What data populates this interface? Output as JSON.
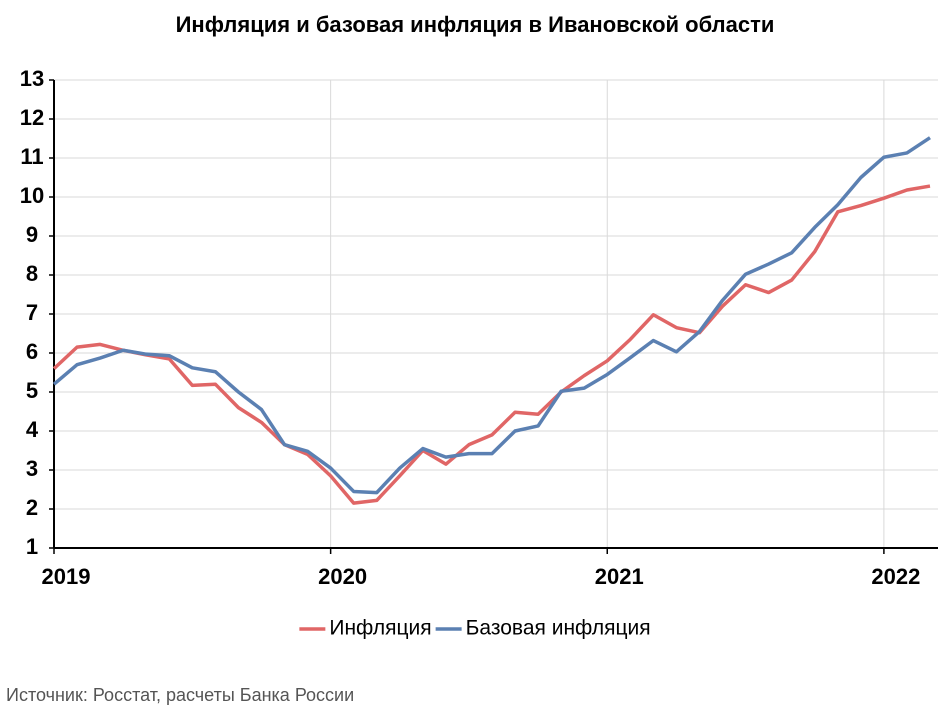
{
  "chart_data": {
    "type": "line",
    "title": "Инфляция и базовая инфляция в Ивановской области",
    "source": "Источник: Росстат, расчеты Банка России",
    "categories": [
      "2019",
      null,
      null,
      null,
      null,
      null,
      null,
      null,
      null,
      null,
      null,
      null,
      "2020",
      null,
      null,
      null,
      null,
      null,
      null,
      null,
      null,
      null,
      null,
      null,
      "2021",
      null,
      null,
      null,
      null,
      null,
      null,
      null,
      null,
      null,
      null,
      null,
      "2022",
      null,
      null
    ],
    "series": [
      {
        "name": "Инфляция",
        "color": "#e06666",
        "values": [
          5.6,
          6.15,
          6.22,
          6.07,
          5.95,
          5.85,
          5.17,
          5.2,
          4.6,
          4.22,
          3.65,
          3.4,
          2.85,
          2.15,
          2.22,
          2.85,
          3.5,
          3.15,
          3.65,
          3.9,
          4.48,
          4.43,
          5.0,
          5.42,
          5.8,
          6.35,
          6.98,
          6.65,
          6.52,
          7.2,
          7.75,
          7.55,
          7.87,
          8.6,
          9.62,
          9.78,
          9.97,
          10.18,
          10.28
        ]
      },
      {
        "name": "Базовая инфляция",
        "color": "#5b80b2",
        "values": [
          5.2,
          5.7,
          5.87,
          6.07,
          5.97,
          5.93,
          5.62,
          5.52,
          5.0,
          4.55,
          3.65,
          3.48,
          3.05,
          2.45,
          2.42,
          3.05,
          3.55,
          3.33,
          3.42,
          3.42,
          4.0,
          4.13,
          5.02,
          5.1,
          5.45,
          5.88,
          6.32,
          6.03,
          6.55,
          7.35,
          8.02,
          8.28,
          8.57,
          9.22,
          9.8,
          10.5,
          11.02,
          11.13,
          11.52
        ]
      }
    ],
    "ylim": [
      1,
      13
    ],
    "yticks": [
      1,
      2,
      3,
      4,
      5,
      6,
      7,
      8,
      9,
      10,
      11,
      12,
      13
    ],
    "grid": true,
    "legend": "bottom"
  }
}
